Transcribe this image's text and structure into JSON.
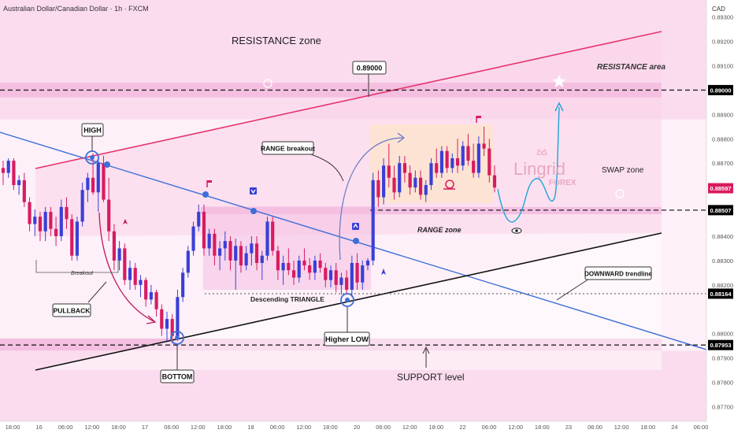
{
  "header": {
    "symbol_title": "Australian Dollar/Canadian Dollar · 1h · FXCM",
    "currency": "CAD"
  },
  "colors": {
    "background": "#ffffff",
    "pink_zone": "#fbdcef",
    "pink_band": "#f4bfe1",
    "bull": "#3a3fd6",
    "bear": "#d81b60",
    "resistance_line": "#e5336d",
    "downtrend_line": "#3d6ed8",
    "support_trend_line": "#111111",
    "range_box": "#fde3cf",
    "logo": "#e6a0bd"
  },
  "icons": [
    "star-icon",
    "eye-icon",
    "flag-icon",
    "arrow-down-marker-icon",
    "arrow-up-marker-icon",
    "rocket-icon",
    "snail-icon",
    "info-circle-icon",
    "crown-icon"
  ],
  "chart_data": {
    "type": "candlestick",
    "title": "Australian Dollar/Canadian Dollar · 1h · FXCM",
    "currency": "CAD",
    "ylim": [
      0.8764,
      0.8937
    ],
    "y_ticks": [
      "0.89300",
      "0.89200",
      "0.89100",
      "0.88900",
      "0.88800",
      "0.88700",
      "0.88400",
      "0.88300",
      "0.88200",
      "0.88000",
      "0.87900",
      "0.87800",
      "0.87700"
    ],
    "y_tick_values": [
      0.893,
      0.892,
      0.891,
      0.889,
      0.888,
      0.887,
      0.884,
      0.883,
      0.882,
      0.88,
      0.879,
      0.878,
      0.877
    ],
    "x_ticks": [
      "18:00",
      "16",
      "06:00",
      "12:00",
      "18:00",
      "17",
      "06:00",
      "12:00",
      "18:00",
      "18",
      "06:00",
      "12:00",
      "18:00",
      "20",
      "06:00",
      "12:00",
      "18:00",
      "22",
      "06:00",
      "12:00",
      "18:00",
      "23",
      "06:00",
      "12:00",
      "18:00",
      "24",
      "06:00"
    ],
    "price_labels": [
      {
        "text": "0.89000",
        "value": 0.89,
        "color": "#000000"
      },
      {
        "text": "0.88597",
        "value": 0.88597,
        "color": "#d81b60"
      },
      {
        "text": "0.88507",
        "value": 0.88507,
        "color": "#000000"
      },
      {
        "text": "0.88164",
        "value": 0.88164,
        "color": "#000000"
      },
      {
        "text": "0.87953",
        "value": 0.87953,
        "color": "#000000"
      }
    ],
    "levels": [
      0.89,
      0.88507,
      0.88164,
      0.87953
    ],
    "zones": {
      "resistance_area": [
        0.8897,
        0.8903
      ],
      "swap_zone": [
        0.8849,
        0.8852
      ],
      "support_zone": [
        0.8793,
        0.8798
      ],
      "upper_pink": [
        0.8888,
        0.8937
      ],
      "lower_pink": [
        0.8764,
        0.8793
      ]
    },
    "annotations": {
      "resistance_zone": "RESISTANCE zone",
      "resistance_area": "RESISTANCE area",
      "level_label": "0.89000",
      "swap_zone": "SWAP zone",
      "high": "HIGH",
      "range_breakout": "RANGE breakout",
      "range_zone": "RANGE zone",
      "breakout": "Breakout",
      "pullback": "PULLBACK",
      "descending_triangle": "Descending TRIANGLE",
      "downward_trendline": "DOWNWARD trendline",
      "higher_low": "Higher LOW",
      "bottom": "BOTTOM",
      "support_level": "SUPPORT level",
      "logo_main": "Lingrid",
      "logo_sub": "FOREX"
    },
    "candles": [
      [
        0.8868,
        0.8871,
        0.8861,
        0.8866
      ],
      [
        0.8866,
        0.8872,
        0.8864,
        0.8871
      ],
      [
        0.8871,
        0.8872,
        0.8859,
        0.8861
      ],
      [
        0.8861,
        0.8865,
        0.8857,
        0.8863
      ],
      [
        0.8863,
        0.8866,
        0.8852,
        0.8854
      ],
      [
        0.8854,
        0.8856,
        0.8842,
        0.8845
      ],
      [
        0.8845,
        0.8851,
        0.884,
        0.8848
      ],
      [
        0.8848,
        0.885,
        0.8838,
        0.8842
      ],
      [
        0.8842,
        0.8852,
        0.8838,
        0.885
      ],
      [
        0.885,
        0.8852,
        0.884,
        0.8843
      ],
      [
        0.8843,
        0.8848,
        0.8836,
        0.884
      ],
      [
        0.884,
        0.8855,
        0.8838,
        0.8852
      ],
      [
        0.8852,
        0.8856,
        0.8843,
        0.8847
      ],
      [
        0.8847,
        0.8849,
        0.883,
        0.8832
      ],
      [
        0.8832,
        0.8848,
        0.883,
        0.8846
      ],
      [
        0.8846,
        0.8862,
        0.8844,
        0.8859
      ],
      [
        0.8859,
        0.8866,
        0.8854,
        0.8864
      ],
      [
        0.8864,
        0.8874,
        0.8857,
        0.8858
      ],
      [
        0.8858,
        0.8872,
        0.885,
        0.887
      ],
      [
        0.887,
        0.8873,
        0.8854,
        0.8855
      ],
      [
        0.8855,
        0.8864,
        0.8838,
        0.8842
      ],
      [
        0.8842,
        0.8845,
        0.8826,
        0.883
      ],
      [
        0.883,
        0.8838,
        0.8826,
        0.8835
      ],
      [
        0.8835,
        0.8837,
        0.882,
        0.8822
      ],
      [
        0.8822,
        0.883,
        0.8818,
        0.8827
      ],
      [
        0.8827,
        0.8829,
        0.8818,
        0.882
      ],
      [
        0.882,
        0.8824,
        0.8815,
        0.8822
      ],
      [
        0.8822,
        0.8823,
        0.8811,
        0.8814
      ],
      [
        0.8814,
        0.882,
        0.8812,
        0.8817
      ],
      [
        0.8817,
        0.8818,
        0.8807,
        0.881
      ],
      [
        0.881,
        0.8812,
        0.8799,
        0.8802
      ],
      [
        0.8802,
        0.8809,
        0.8797,
        0.8806
      ],
      [
        0.8806,
        0.8808,
        0.8796,
        0.8799
      ],
      [
        0.8799,
        0.8818,
        0.8797,
        0.8815
      ],
      [
        0.8815,
        0.8827,
        0.8813,
        0.8825
      ],
      [
        0.8825,
        0.8836,
        0.8823,
        0.8834
      ],
      [
        0.8834,
        0.8846,
        0.8832,
        0.8844
      ],
      [
        0.8844,
        0.8853,
        0.8842,
        0.885
      ],
      [
        0.885,
        0.8853,
        0.8832,
        0.8835
      ],
      [
        0.8835,
        0.8843,
        0.8832,
        0.8841
      ],
      [
        0.8841,
        0.8843,
        0.8828,
        0.8832
      ],
      [
        0.8832,
        0.8838,
        0.8826,
        0.8835
      ],
      [
        0.8835,
        0.8842,
        0.883,
        0.8838
      ],
      [
        0.8838,
        0.884,
        0.8826,
        0.883
      ],
      [
        0.883,
        0.8839,
        0.8818,
        0.8836
      ],
      [
        0.8836,
        0.8838,
        0.8825,
        0.8828
      ],
      [
        0.8828,
        0.8836,
        0.8826,
        0.8833
      ],
      [
        0.8833,
        0.884,
        0.8828,
        0.8837
      ],
      [
        0.8837,
        0.884,
        0.8826,
        0.8829
      ],
      [
        0.8829,
        0.8834,
        0.8822,
        0.8832
      ],
      [
        0.8832,
        0.8848,
        0.883,
        0.8846
      ],
      [
        0.8846,
        0.8848,
        0.8832,
        0.8834
      ],
      [
        0.8834,
        0.8836,
        0.8822,
        0.8826
      ],
      [
        0.8826,
        0.8832,
        0.882,
        0.8829
      ],
      [
        0.8829,
        0.8835,
        0.8824,
        0.8826
      ],
      [
        0.8826,
        0.883,
        0.882,
        0.8823
      ],
      [
        0.8823,
        0.8832,
        0.8821,
        0.883
      ],
      [
        0.883,
        0.8835,
        0.8826,
        0.8828
      ],
      [
        0.8828,
        0.8831,
        0.8822,
        0.8825
      ],
      [
        0.8825,
        0.8832,
        0.8822,
        0.883
      ],
      [
        0.883,
        0.8833,
        0.8825,
        0.8827
      ],
      [
        0.8827,
        0.8829,
        0.8819,
        0.8822
      ],
      [
        0.8822,
        0.8828,
        0.8819,
        0.8826
      ],
      [
        0.8826,
        0.8829,
        0.8817,
        0.882
      ],
      [
        0.882,
        0.8825,
        0.8816,
        0.8823
      ],
      [
        0.8823,
        0.8826,
        0.8816,
        0.8818
      ],
      [
        0.8818,
        0.8832,
        0.8815,
        0.8829
      ],
      [
        0.8829,
        0.8833,
        0.8818,
        0.8821
      ],
      [
        0.8821,
        0.883,
        0.8818,
        0.8828
      ],
      [
        0.8828,
        0.8831,
        0.8826,
        0.883
      ],
      [
        0.883,
        0.8866,
        0.8828,
        0.8863
      ],
      [
        0.8863,
        0.8867,
        0.8852,
        0.8856
      ],
      [
        0.8856,
        0.8872,
        0.8853,
        0.8869
      ],
      [
        0.8869,
        0.8878,
        0.886,
        0.8864
      ],
      [
        0.8864,
        0.8869,
        0.8855,
        0.8858
      ],
      [
        0.8858,
        0.8873,
        0.8856,
        0.887
      ],
      [
        0.887,
        0.8873,
        0.8862,
        0.8866
      ],
      [
        0.8866,
        0.8869,
        0.8857,
        0.886
      ],
      [
        0.886,
        0.8867,
        0.8858,
        0.8864
      ],
      [
        0.8864,
        0.8867,
        0.8855,
        0.8857
      ],
      [
        0.8857,
        0.8863,
        0.8854,
        0.8861
      ],
      [
        0.8861,
        0.8872,
        0.8859,
        0.887
      ],
      [
        0.887,
        0.8876,
        0.8864,
        0.8866
      ],
      [
        0.8866,
        0.8877,
        0.8864,
        0.8875
      ],
      [
        0.8875,
        0.8877,
        0.8866,
        0.8868
      ],
      [
        0.8868,
        0.8874,
        0.8866,
        0.8872
      ],
      [
        0.8872,
        0.888,
        0.8866,
        0.8869
      ],
      [
        0.8869,
        0.8879,
        0.8867,
        0.8877
      ],
      [
        0.8877,
        0.8882,
        0.8869,
        0.8871
      ],
      [
        0.8871,
        0.8878,
        0.8864,
        0.8866
      ],
      [
        0.8866,
        0.8881,
        0.8864,
        0.8878
      ],
      [
        0.8878,
        0.8885,
        0.8873,
        0.8876
      ],
      [
        0.8876,
        0.888,
        0.8862,
        0.8865
      ],
      [
        0.8865,
        0.8869,
        0.8858,
        0.886
      ]
    ]
  }
}
